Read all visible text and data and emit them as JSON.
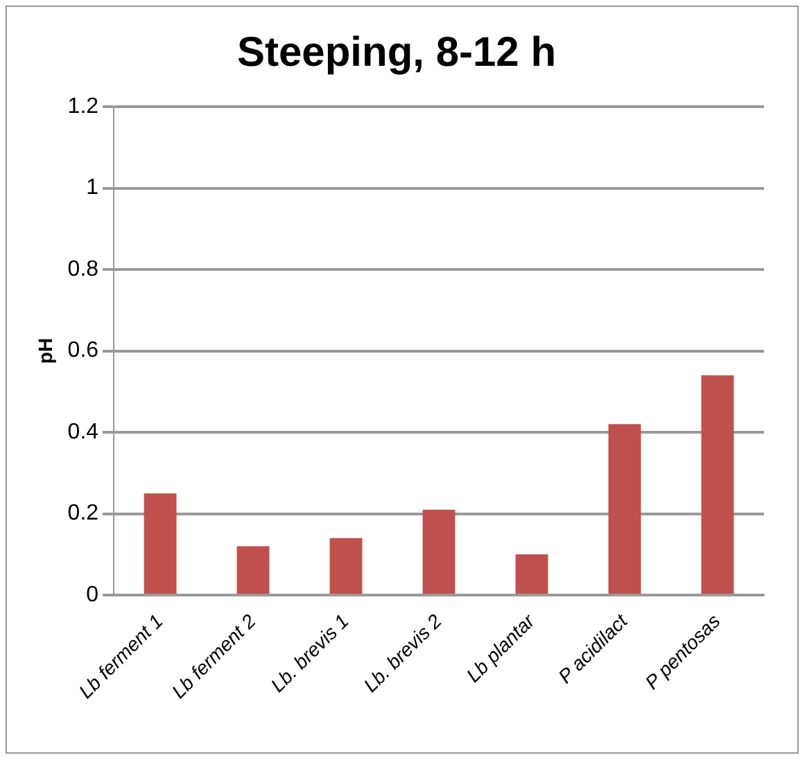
{
  "chart_data": {
    "type": "bar",
    "title": "Steeping, 8-12 h",
    "ylabel": "pH",
    "categories": [
      "Lb ferment 1",
      "Lb ferment 2",
      "Lb. brevis 1",
      "Lb. brevis 2",
      "Lb plantar",
      "P acidilact",
      "P pentosas"
    ],
    "values": [
      0.25,
      0.12,
      0.14,
      0.21,
      0.1,
      0.42,
      0.54
    ],
    "color": "#c0504d",
    "ylim": [
      0,
      1.2
    ],
    "yticks": [
      0,
      0.2,
      0.4,
      0.6,
      0.8,
      1,
      1.2
    ],
    "grid": "y",
    "legend": false
  }
}
